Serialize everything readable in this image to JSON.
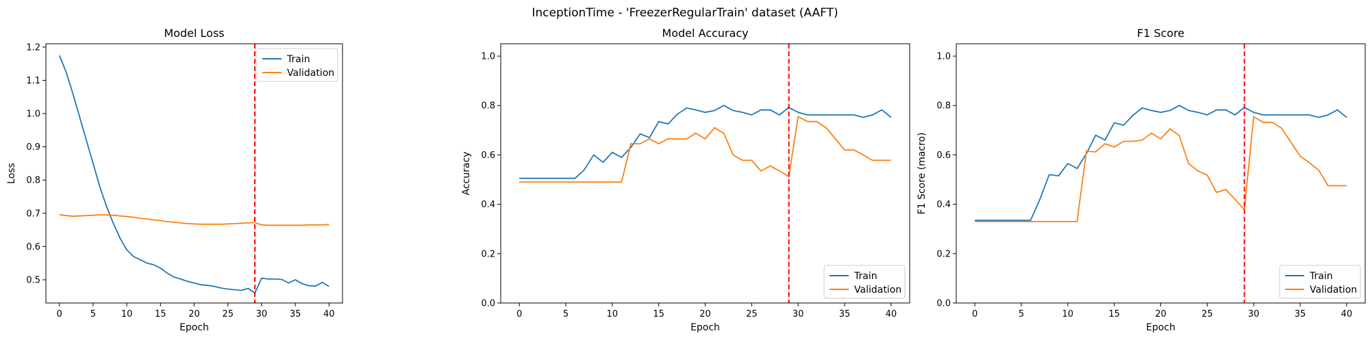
{
  "figure": {
    "suptitle": "InceptionTime - 'FreezerRegularTrain' dataset (AAFT)"
  },
  "colors": {
    "train": "#1f77b4",
    "validation": "#ff7f0e",
    "marker": "#ff0000"
  },
  "chart_data": [
    {
      "type": "line",
      "title": "Model Loss",
      "xlabel": "Epoch",
      "ylabel": "Loss",
      "xlim": [
        -2,
        42
      ],
      "ylim": [
        0.43,
        1.21
      ],
      "xticks": [
        0,
        5,
        10,
        15,
        20,
        25,
        30,
        35,
        40
      ],
      "yticks": [
        0.5,
        0.6,
        0.7,
        0.8,
        0.9,
        1.0,
        1.1,
        1.2
      ],
      "ytick_format": "1",
      "marker_epoch": 29,
      "legend_position": "top-right",
      "x": [
        0,
        1,
        2,
        3,
        4,
        5,
        6,
        7,
        8,
        9,
        10,
        11,
        12,
        13,
        14,
        15,
        16,
        17,
        18,
        19,
        20,
        21,
        22,
        23,
        24,
        25,
        26,
        27,
        28,
        29,
        30,
        31,
        32,
        33,
        34,
        35,
        36,
        37,
        38,
        39,
        40
      ],
      "series": [
        {
          "name": "Train",
          "values": [
            1.175,
            1.125,
            1.06,
            0.99,
            0.92,
            0.85,
            0.78,
            0.72,
            0.67,
            0.625,
            0.59,
            0.57,
            0.56,
            0.55,
            0.545,
            0.535,
            0.52,
            0.508,
            0.502,
            0.495,
            0.49,
            0.485,
            0.483,
            0.48,
            0.475,
            0.472,
            0.47,
            0.468,
            0.474,
            0.46,
            0.505,
            0.502,
            0.502,
            0.501,
            0.49,
            0.5,
            0.488,
            0.482,
            0.481,
            0.492,
            0.48
          ]
        },
        {
          "name": "Validation",
          "values": [
            0.696,
            0.693,
            0.691,
            0.692,
            0.693,
            0.694,
            0.695,
            0.695,
            0.694,
            0.692,
            0.69,
            0.688,
            0.685,
            0.683,
            0.68,
            0.678,
            0.675,
            0.673,
            0.671,
            0.669,
            0.668,
            0.667,
            0.667,
            0.667,
            0.667,
            0.668,
            0.669,
            0.67,
            0.671,
            0.672,
            0.665,
            0.664,
            0.664,
            0.664,
            0.664,
            0.664,
            0.664,
            0.665,
            0.665,
            0.665,
            0.666
          ]
        }
      ]
    },
    {
      "type": "line",
      "title": "Model Accuracy",
      "xlabel": "Epoch",
      "ylabel": "Accuracy",
      "xlim": [
        -2,
        42
      ],
      "ylim": [
        0.0,
        1.05
      ],
      "xticks": [
        0,
        5,
        10,
        15,
        20,
        25,
        30,
        35,
        40
      ],
      "yticks": [
        0.0,
        0.2,
        0.4,
        0.6,
        0.8,
        1.0
      ],
      "ytick_format": "1",
      "marker_epoch": 29,
      "legend_position": "bottom-right",
      "x": [
        0,
        1,
        2,
        3,
        4,
        5,
        6,
        7,
        8,
        9,
        10,
        11,
        12,
        13,
        14,
        15,
        16,
        17,
        18,
        19,
        20,
        21,
        22,
        23,
        24,
        25,
        26,
        27,
        28,
        29,
        30,
        31,
        32,
        33,
        34,
        35,
        36,
        37,
        38,
        39,
        40
      ],
      "series": [
        {
          "name": "Train",
          "values": [
            0.505,
            0.505,
            0.505,
            0.505,
            0.505,
            0.505,
            0.505,
            0.54,
            0.6,
            0.57,
            0.61,
            0.59,
            0.63,
            0.685,
            0.67,
            0.735,
            0.725,
            0.765,
            0.79,
            0.782,
            0.772,
            0.78,
            0.8,
            0.78,
            0.772,
            0.762,
            0.782,
            0.782,
            0.762,
            0.792,
            0.772,
            0.762,
            0.762,
            0.762,
            0.762,
            0.762,
            0.762,
            0.752,
            0.762,
            0.782,
            0.752
          ]
        },
        {
          "name": "Validation",
          "values": [
            0.49,
            0.49,
            0.49,
            0.49,
            0.49,
            0.49,
            0.49,
            0.49,
            0.49,
            0.49,
            0.49,
            0.49,
            0.645,
            0.645,
            0.665,
            0.645,
            0.665,
            0.665,
            0.665,
            0.688,
            0.665,
            0.71,
            0.688,
            0.6,
            0.578,
            0.578,
            0.535,
            0.555,
            0.535,
            0.512,
            0.755,
            0.735,
            0.735,
            0.71,
            0.665,
            0.62,
            0.62,
            0.6,
            0.578,
            0.578,
            0.578
          ]
        }
      ]
    },
    {
      "type": "line",
      "title": "F1 Score",
      "xlabel": "Epoch",
      "ylabel": "F1 Score (macro)",
      "xlim": [
        -2,
        42
      ],
      "ylim": [
        0.0,
        1.05
      ],
      "xticks": [
        0,
        5,
        10,
        15,
        20,
        25,
        30,
        35,
        40
      ],
      "yticks": [
        0.0,
        0.2,
        0.4,
        0.6,
        0.8,
        1.0
      ],
      "ytick_format": "1",
      "marker_epoch": 29,
      "legend_position": "bottom-right",
      "x": [
        0,
        1,
        2,
        3,
        4,
        5,
        6,
        7,
        8,
        9,
        10,
        11,
        12,
        13,
        14,
        15,
        16,
        17,
        18,
        19,
        20,
        21,
        22,
        23,
        24,
        25,
        26,
        27,
        28,
        29,
        30,
        31,
        32,
        33,
        34,
        35,
        36,
        37,
        38,
        39,
        40
      ],
      "series": [
        {
          "name": "Train",
          "values": [
            0.335,
            0.335,
            0.335,
            0.335,
            0.335,
            0.335,
            0.335,
            0.42,
            0.52,
            0.515,
            0.565,
            0.545,
            0.605,
            0.68,
            0.66,
            0.73,
            0.72,
            0.76,
            0.79,
            0.78,
            0.772,
            0.78,
            0.8,
            0.78,
            0.772,
            0.762,
            0.782,
            0.782,
            0.762,
            0.792,
            0.772,
            0.762,
            0.762,
            0.762,
            0.762,
            0.762,
            0.762,
            0.752,
            0.762,
            0.782,
            0.752
          ]
        },
        {
          "name": "Validation",
          "values": [
            0.33,
            0.33,
            0.33,
            0.33,
            0.33,
            0.33,
            0.33,
            0.33,
            0.33,
            0.33,
            0.33,
            0.33,
            0.615,
            0.612,
            0.645,
            0.632,
            0.655,
            0.655,
            0.66,
            0.688,
            0.665,
            0.705,
            0.678,
            0.565,
            0.535,
            0.518,
            0.448,
            0.46,
            0.42,
            0.378,
            0.755,
            0.732,
            0.732,
            0.708,
            0.652,
            0.595,
            0.568,
            0.538,
            0.475,
            0.475,
            0.475
          ]
        }
      ]
    }
  ]
}
